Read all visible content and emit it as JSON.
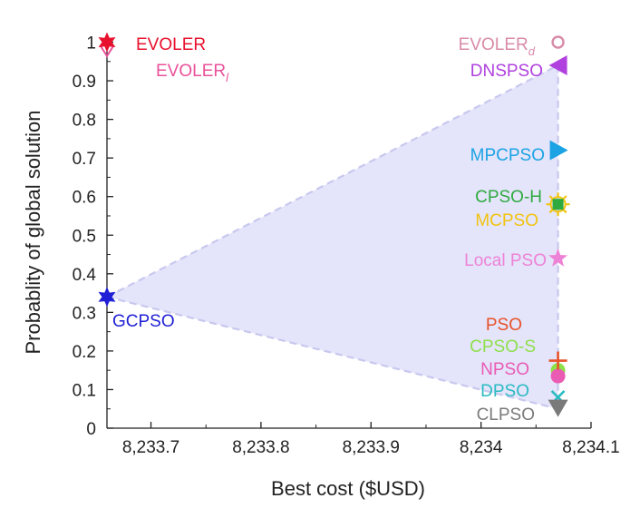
{
  "chart_data": {
    "type": "scatter",
    "xlabel": "Best cost ($USD)",
    "ylabel": "Probablity of global solution",
    "xlim": [
      8233.66,
      8234.1
    ],
    "ylim": [
      0,
      1.02
    ],
    "x_ticks": [
      8233.7,
      8233.8,
      8233.9,
      8234,
      8234.1
    ],
    "x_tick_labels": [
      "8,233.7",
      "8,233.8",
      "8,233.9",
      "8,234",
      "8,234.1"
    ],
    "y_ticks": [
      0,
      0.1,
      0.2,
      0.3,
      0.4,
      0.5,
      0.6,
      0.7,
      0.8,
      0.9,
      1
    ],
    "y_tick_labels": [
      "0",
      "0.1",
      "0.2",
      "0.3",
      "0.4",
      "0.5",
      "0.6",
      "0.7",
      "0.8",
      "0.9",
      "1"
    ],
    "grid": false,
    "region": {
      "color": "#e4e4fb",
      "edge_color": "#c8c8ee",
      "vertices": [
        [
          8233.66,
          0.34
        ],
        [
          8234.07,
          0.94
        ],
        [
          8234.07,
          0.05
        ]
      ]
    },
    "points": [
      {
        "name": "EVOLER",
        "subscript": "",
        "x": 8233.66,
        "y": 1.0,
        "marker": "star6",
        "color": "#e8112d"
      },
      {
        "name": "EVOLER",
        "subscript": "l",
        "x": 8233.66,
        "y": 0.99,
        "marker": "diamond-open",
        "color": "#e9519a"
      },
      {
        "name": "EVOLER",
        "subscript": "d",
        "x": 8234.07,
        "y": 1.0,
        "marker": "circle-open",
        "color": "#d98ba8"
      },
      {
        "name": "DNSPSO",
        "subscript": "",
        "x": 8234.07,
        "y": 0.94,
        "marker": "triangle-left",
        "color": "#b041de"
      },
      {
        "name": "MPCPSO",
        "subscript": "",
        "x": 8234.07,
        "y": 0.72,
        "marker": "triangle-right",
        "color": "#1ba3e3"
      },
      {
        "name": "CPSO-H",
        "subscript": "",
        "x": 8234.07,
        "y": 0.58,
        "marker": "square",
        "color": "#2faa3f"
      },
      {
        "name": "MCPSO",
        "subscript": "",
        "x": 8234.07,
        "y": 0.58,
        "marker": "sun",
        "color": "#f1c40f"
      },
      {
        "name": "Local PSO",
        "subscript": "",
        "x": 8234.07,
        "y": 0.44,
        "marker": "star5",
        "color": "#ee82d6"
      },
      {
        "name": "GCPSO",
        "subscript": "",
        "x": 8233.66,
        "y": 0.34,
        "marker": "star6",
        "color": "#1f1fd6"
      },
      {
        "name": "PSO",
        "subscript": "",
        "x": 8234.07,
        "y": 0.175,
        "marker": "plus",
        "color": "#e8522a"
      },
      {
        "name": "CPSO-S",
        "subscript": "",
        "x": 8234.07,
        "y": 0.15,
        "marker": "circle",
        "color": "#8ee04a"
      },
      {
        "name": "NPSO",
        "subscript": "",
        "x": 8234.07,
        "y": 0.135,
        "marker": "circle",
        "color": "#ea5bb3"
      },
      {
        "name": "DPSO",
        "subscript": "",
        "x": 8234.07,
        "y": 0.08,
        "marker": "x",
        "color": "#2bbbc2"
      },
      {
        "name": "CLPSO",
        "subscript": "",
        "x": 8234.07,
        "y": 0.055,
        "marker": "triangle-down",
        "color": "#7a7a7a"
      }
    ]
  }
}
